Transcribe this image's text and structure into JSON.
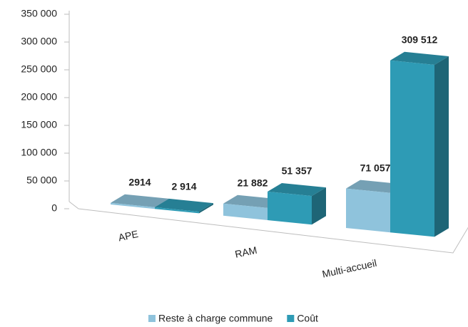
{
  "chart_data": {
    "type": "bar3d",
    "categories": [
      "APE",
      "RAM",
      "Multi-accueil"
    ],
    "series": [
      {
        "name": "Reste à charge commune",
        "color": "#8fc3dc",
        "values": [
          2914,
          21882,
          71057
        ],
        "value_labels": [
          "2914",
          "21 882",
          "71 057"
        ]
      },
      {
        "name": "Coût",
        "color": "#2e9bb5",
        "values": [
          2914,
          51357,
          309512
        ],
        "value_labels": [
          "2 914",
          "51 357",
          "309 512"
        ]
      }
    ],
    "ylim": [
      0,
      350000
    ],
    "yticks": [
      0,
      {
        "value": 50000,
        "label": "50 000"
      },
      {
        "value": 100000,
        "label": "100 000"
      },
      {
        "value": 150000,
        "label": "150 000"
      },
      {
        "value": 200000,
        "label": "200 000"
      },
      {
        "value": 250000,
        "label": "250 000"
      },
      {
        "value": 300000,
        "label": "300 000"
      },
      {
        "value": 350000,
        "label": "350 000"
      }
    ],
    "legend": "bottom"
  }
}
